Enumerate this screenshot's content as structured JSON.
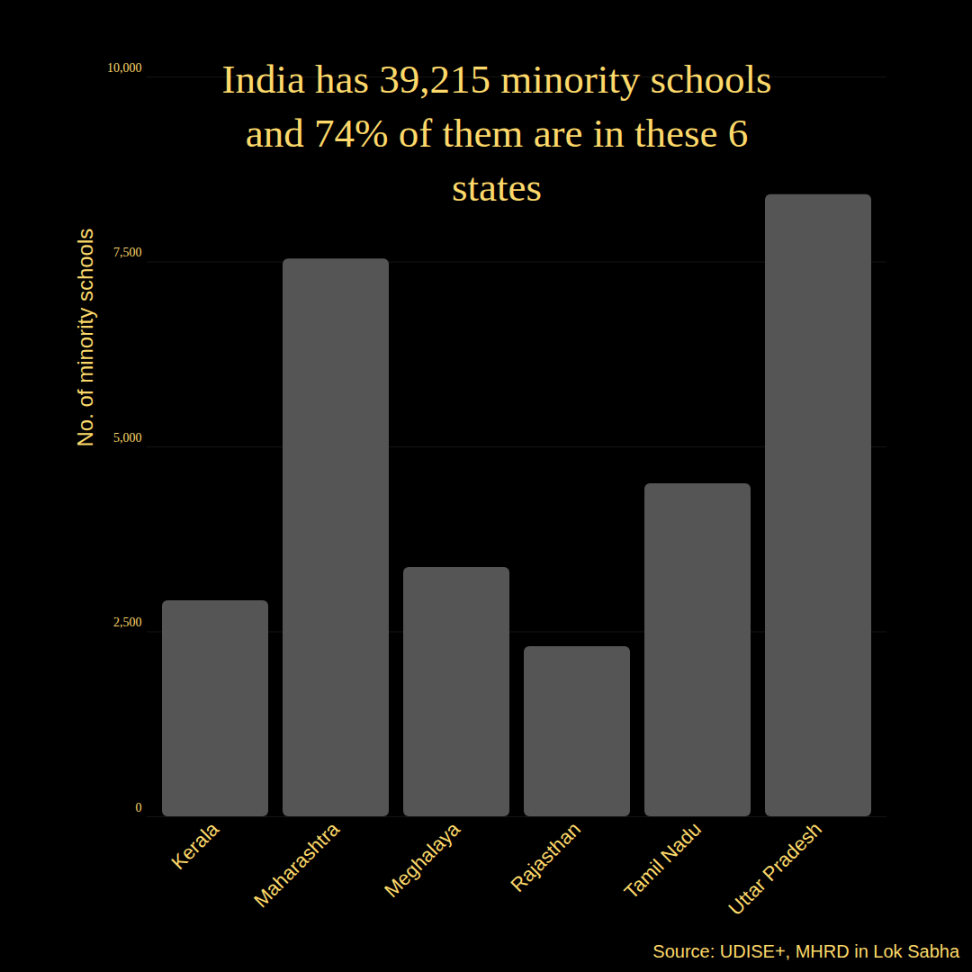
{
  "chart_data": {
    "type": "bar",
    "title": "India has 39,215 minority schools and 74% of them are in these 6 states",
    "y_label": "No. of minority schools",
    "source": "Source: UDISE+, MHRD in Lok Sabha",
    "categories": [
      "Kerala",
      "Maharashtra",
      "Meghalaya",
      "Rajasthan",
      "Tamil Nadu",
      "Uttar Pradesh"
    ],
    "values": [
      2920,
      7540,
      3370,
      2300,
      4500,
      8410
    ],
    "color": "#555555",
    "ylim": [
      0,
      10000
    ],
    "yticks": [
      0,
      {
        "value": 2500,
        "label": "2,500"
      },
      {
        "value": 5000,
        "label": "5,000"
      },
      {
        "value": 7500,
        "label": "7,500"
      },
      {
        "value": 10000,
        "label": "10,000"
      }
    ],
    "grid": true
  }
}
